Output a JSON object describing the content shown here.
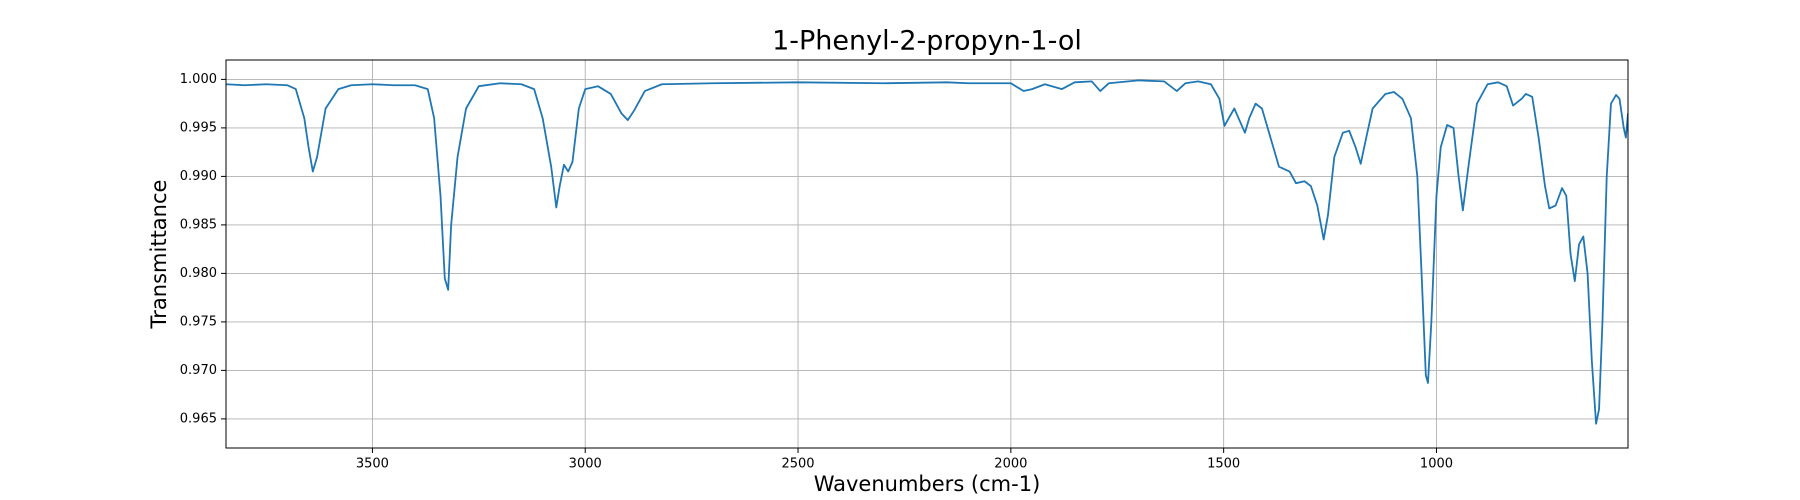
{
  "chart_data": {
    "type": "line",
    "title": "1-Phenyl-2-propyn-1-ol",
    "x_label": "Wavenumbers (cm-1)",
    "y_label": "Transmittance",
    "xlim": [
      3844,
      550
    ],
    "ylim": [
      0.962,
      1.002
    ],
    "xticks": [
      3500,
      3000,
      2500,
      2000,
      1500,
      1000
    ],
    "yticks": [
      {
        "value": 1.0,
        "label": "1.000"
      },
      0.995,
      {
        "value": 0.99,
        "label": "0.990"
      },
      0.985,
      {
        "value": 0.98,
        "label": "0.980"
      },
      0.975,
      {
        "value": 0.97,
        "label": "0.970"
      },
      0.965
    ],
    "grid": true,
    "series": [
      {
        "color": "#1f77b4",
        "x": [
          3844,
          3800,
          3750,
          3700,
          3680,
          3660,
          3650,
          3640,
          3630,
          3610,
          3580,
          3550,
          3500,
          3450,
          3400,
          3370,
          3355,
          3340,
          3330,
          3322,
          3315,
          3300,
          3280,
          3250,
          3200,
          3150,
          3120,
          3100,
          3080,
          3068,
          3060,
          3050,
          3040,
          3030,
          3015,
          3000,
          2970,
          2940,
          2915,
          2900,
          2885,
          2860,
          2820,
          2700,
          2500,
          2300,
          2150,
          2100,
          2050,
          2000,
          1970,
          1950,
          1920,
          1880,
          1850,
          1810,
          1790,
          1770,
          1700,
          1640,
          1610,
          1590,
          1560,
          1530,
          1510,
          1498,
          1488,
          1475,
          1465,
          1450,
          1440,
          1425,
          1410,
          1390,
          1370,
          1345,
          1330,
          1310,
          1295,
          1280,
          1265,
          1255,
          1240,
          1220,
          1205,
          1190,
          1178,
          1165,
          1150,
          1120,
          1100,
          1080,
          1060,
          1045,
          1035,
          1025,
          1020,
          1012,
          1000,
          990,
          975,
          960,
          948,
          938,
          925,
          905,
          880,
          855,
          835,
          820,
          800,
          790,
          775,
          760,
          745,
          735,
          720,
          705,
          695,
          685,
          675,
          665,
          655,
          645,
          635,
          625,
          618,
          610,
          600,
          590,
          578,
          570,
          560,
          555,
          550
        ],
        "values": [
          0.9995,
          0.9994,
          0.9995,
          0.9994,
          0.999,
          0.996,
          0.993,
          0.9905,
          0.992,
          0.997,
          0.999,
          0.9994,
          0.9995,
          0.9994,
          0.9994,
          0.999,
          0.996,
          0.988,
          0.9795,
          0.9783,
          0.985,
          0.992,
          0.997,
          0.9993,
          0.9996,
          0.9995,
          0.999,
          0.996,
          0.991,
          0.9868,
          0.989,
          0.9912,
          0.9905,
          0.9915,
          0.997,
          0.999,
          0.9993,
          0.9985,
          0.9965,
          0.9958,
          0.9968,
          0.9988,
          0.9995,
          0.9996,
          0.9997,
          0.9996,
          0.9997,
          0.9996,
          0.9996,
          0.9996,
          0.9988,
          0.999,
          0.9995,
          0.999,
          0.9997,
          0.9998,
          0.9988,
          0.9996,
          0.9999,
          0.9998,
          0.9988,
          0.9996,
          0.9998,
          0.9995,
          0.998,
          0.9952,
          0.996,
          0.997,
          0.996,
          0.9945,
          0.996,
          0.9975,
          0.997,
          0.994,
          0.991,
          0.9905,
          0.9893,
          0.9895,
          0.989,
          0.987,
          0.9835,
          0.986,
          0.992,
          0.9945,
          0.9947,
          0.993,
          0.9913,
          0.994,
          0.997,
          0.9985,
          0.9987,
          0.998,
          0.996,
          0.99,
          0.98,
          0.9695,
          0.9687,
          0.975,
          0.988,
          0.993,
          0.9953,
          0.995,
          0.99,
          0.9865,
          0.991,
          0.9975,
          0.9995,
          0.9997,
          0.9993,
          0.9973,
          0.998,
          0.9985,
          0.9982,
          0.994,
          0.989,
          0.9867,
          0.987,
          0.9888,
          0.988,
          0.982,
          0.9792,
          0.983,
          0.9838,
          0.98,
          0.971,
          0.9645,
          0.966,
          0.975,
          0.99,
          0.9975,
          0.9984,
          0.998,
          0.995,
          0.994,
          0.9965
        ]
      }
    ]
  }
}
